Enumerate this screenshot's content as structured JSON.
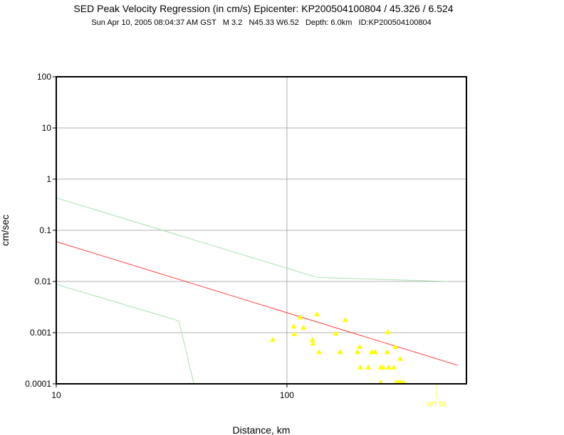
{
  "chart_data": {
    "type": "scatter",
    "title": "SED Peak Velocity Regression (in cm/s) Epicenter: KP200504100804 / 45.326 / 6.524",
    "subtitle": "Sun Apr 10, 2005 08:04:37 AM GST   M 3.2   N45.33 W6.52   Depth: 6.0km   ID:KP200504100804",
    "x_label": "Distance, km",
    "y_label": "cm/sec",
    "x_scale": "log",
    "y_scale": "log",
    "xlim": [
      10,
      600
    ],
    "ylim": [
      0.0001,
      100
    ],
    "xticks": [
      10,
      100
    ],
    "yticks": [
      0.0001,
      0.001,
      0.01,
      0.1,
      1,
      10,
      100
    ],
    "grid": true,
    "series": [
      {
        "color": "#ffff00",
        "x": [
          86.7,
          107,
          107.5,
          114,
          117.8,
          129,
          129.7,
          134.8,
          137.7,
          163,
          170,
          179,
          202,
          206.5,
          208,
          225,
          233,
          241,
          255,
          261,
          272,
          274,
          276,
          290,
          295,
          310,
          255,
          298,
          305,
          312,
          320
        ],
        "values": [
          0.00073,
          0.00133,
          0.00094,
          0.002,
          0.00125,
          0.00073,
          0.00062,
          0.0023,
          0.00042,
          0.00097,
          0.00042,
          0.00178,
          0.00042,
          0.00053,
          0.00021,
          0.00021,
          0.00042,
          0.00042,
          0.00021,
          0.00021,
          0.00042,
          0.00103,
          0.00021,
          0.00021,
          0.00053,
          0.00031,
          0.000107,
          0.000107,
          0.000107,
          0.000107,
          0.000107
        ]
      }
    ],
    "lines": [
      {
        "color": "#ff4040",
        "x": [
          10,
          550
        ],
        "values": [
          0.06,
          0.00023
        ]
      },
      {
        "color": "#a8e0b0",
        "x": [
          10,
          135,
          500
        ],
        "values": [
          0.43,
          0.012,
          0.01
        ]
      },
      {
        "color": "#a8e0b0",
        "x": [
          10,
          34,
          39.5
        ],
        "values": [
          0.0088,
          0.0017,
          0.0001
        ]
      }
    ],
    "annotations": [
      {
        "text": "WTTA",
        "x": 445,
        "color": "#ffff00"
      }
    ]
  }
}
